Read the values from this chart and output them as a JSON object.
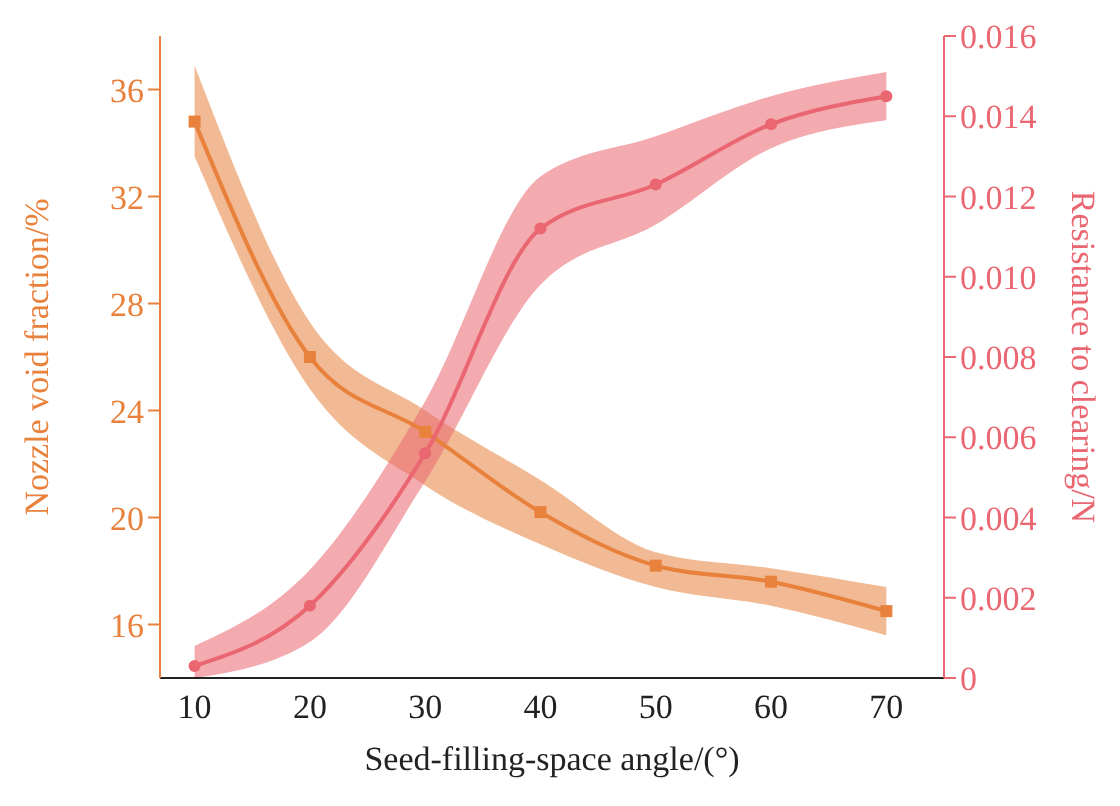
{
  "chart_data": {
    "type": "line",
    "xlabel": "Seed-filling-space angle/(°)",
    "ylabel": "Nozzle void fraction/%",
    "y2label": "Resistance to clearing/N",
    "x": [
      10,
      20,
      30,
      40,
      50,
      60,
      70
    ],
    "xlim": [
      7,
      75
    ],
    "xticks": [
      10,
      20,
      30,
      40,
      50,
      60,
      70
    ],
    "ylim": [
      14,
      38
    ],
    "yticks": [
      16,
      20,
      24,
      28,
      32,
      36
    ],
    "y2lim": [
      0,
      0.016
    ],
    "y2ticks": [
      0,
      0.002,
      0.004,
      0.006,
      0.008,
      {
        "value": 0.01,
        "label": "0.010"
      },
      0.012,
      0.014,
      0.016
    ],
    "grid": false,
    "legend": false,
    "line_style": "solid",
    "series": [
      {
        "color": "#e8813c",
        "marker": "square",
        "values": [
          34.8,
          26.0,
          23.2,
          20.2,
          18.2,
          17.6,
          16.5
        ],
        "lower": [
          33.5,
          24.8,
          21.2,
          19.0,
          17.4,
          16.7,
          15.6
        ],
        "upper": [
          36.9,
          27.3,
          24.0,
          21.4,
          18.7,
          18.1,
          17.4
        ]
      },
      {
        "color": "#ea6670",
        "marker": "circle",
        "axis": "y2",
        "values": [
          0.0003,
          0.0018,
          0.0056,
          0.0112,
          0.0123,
          0.0138,
          0.0145
        ],
        "lower": [
          0.0,
          0.0009,
          0.0049,
          0.0098,
          0.0113,
          0.0132,
          0.0139
        ],
        "upper": [
          0.0008,
          0.0027,
          0.0069,
          0.0125,
          0.0135,
          0.0145,
          0.0151
        ]
      }
    ]
  }
}
